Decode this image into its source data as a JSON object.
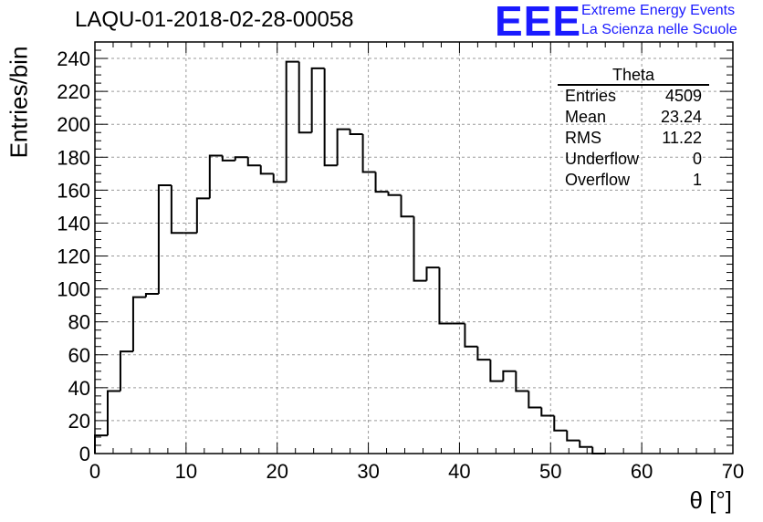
{
  "header": {
    "run_title": "LAQU-01-2018-02-28-00058"
  },
  "logo": {
    "mark": "EEE",
    "line1": "Extreme Energy Events",
    "line2": "La Scienza nelle Scuole",
    "color": "#1a1aff"
  },
  "stats": {
    "title": "Theta",
    "rows": [
      {
        "label": "Entries",
        "value": "4509"
      },
      {
        "label": "Mean",
        "value": "23.24"
      },
      {
        "label": "RMS",
        "value": "11.22"
      },
      {
        "label": "Underflow",
        "value": "0"
      },
      {
        "label": "Overflow",
        "value": "1"
      }
    ]
  },
  "chart_data": {
    "type": "bar",
    "title": "LAQU-01-2018-02-28-00058",
    "xlabel": "θ [°]",
    "ylabel": "Entries/bin",
    "xlim": [
      0,
      70
    ],
    "ylim": [
      0,
      250
    ],
    "bin_width": 1.4,
    "grid": true,
    "legend": "top-right",
    "x_ticks": [
      0,
      10,
      20,
      30,
      40,
      50,
      60,
      70
    ],
    "y_ticks": [
      0,
      20,
      40,
      60,
      80,
      100,
      120,
      140,
      160,
      180,
      200,
      220,
      240
    ],
    "bins": [
      {
        "x0": 0.0,
        "x1": 1.4,
        "y": 11
      },
      {
        "x0": 1.4,
        "x1": 2.8,
        "y": 38
      },
      {
        "x0": 2.8,
        "x1": 4.2,
        "y": 62
      },
      {
        "x0": 4.2,
        "x1": 5.6,
        "y": 95
      },
      {
        "x0": 5.6,
        "x1": 7.0,
        "y": 97
      },
      {
        "x0": 7.0,
        "x1": 8.4,
        "y": 163
      },
      {
        "x0": 8.4,
        "x1": 9.8,
        "y": 134
      },
      {
        "x0": 9.8,
        "x1": 11.2,
        "y": 134
      },
      {
        "x0": 11.2,
        "x1": 12.6,
        "y": 155
      },
      {
        "x0": 12.6,
        "x1": 14.0,
        "y": 181
      },
      {
        "x0": 14.0,
        "x1": 15.4,
        "y": 178
      },
      {
        "x0": 15.4,
        "x1": 16.8,
        "y": 180
      },
      {
        "x0": 16.8,
        "x1": 18.2,
        "y": 175
      },
      {
        "x0": 18.2,
        "x1": 19.6,
        "y": 170
      },
      {
        "x0": 19.6,
        "x1": 21.0,
        "y": 165
      },
      {
        "x0": 21.0,
        "x1": 22.4,
        "y": 238
      },
      {
        "x0": 22.4,
        "x1": 23.8,
        "y": 195
      },
      {
        "x0": 23.8,
        "x1": 25.2,
        "y": 234
      },
      {
        "x0": 25.2,
        "x1": 26.6,
        "y": 175
      },
      {
        "x0": 26.6,
        "x1": 28.0,
        "y": 197
      },
      {
        "x0": 28.0,
        "x1": 29.4,
        "y": 194
      },
      {
        "x0": 29.4,
        "x1": 30.8,
        "y": 171
      },
      {
        "x0": 30.8,
        "x1": 32.2,
        "y": 159
      },
      {
        "x0": 32.2,
        "x1": 33.6,
        "y": 157
      },
      {
        "x0": 33.6,
        "x1": 35.0,
        "y": 144
      },
      {
        "x0": 35.0,
        "x1": 36.4,
        "y": 105
      },
      {
        "x0": 36.4,
        "x1": 37.8,
        "y": 113
      },
      {
        "x0": 37.8,
        "x1": 39.2,
        "y": 79
      },
      {
        "x0": 39.2,
        "x1": 40.6,
        "y": 79
      },
      {
        "x0": 40.6,
        "x1": 42.0,
        "y": 65
      },
      {
        "x0": 42.0,
        "x1": 43.4,
        "y": 57
      },
      {
        "x0": 43.4,
        "x1": 44.8,
        "y": 44
      },
      {
        "x0": 44.8,
        "x1": 46.2,
        "y": 50
      },
      {
        "x0": 46.2,
        "x1": 47.6,
        "y": 38
      },
      {
        "x0": 47.6,
        "x1": 49.0,
        "y": 28
      },
      {
        "x0": 49.0,
        "x1": 50.4,
        "y": 23
      },
      {
        "x0": 50.4,
        "x1": 51.8,
        "y": 14
      },
      {
        "x0": 51.8,
        "x1": 53.2,
        "y": 8
      },
      {
        "x0": 53.2,
        "x1": 54.6,
        "y": 4
      },
      {
        "x0": 54.6,
        "x1": 56.0,
        "y": 0
      }
    ]
  }
}
